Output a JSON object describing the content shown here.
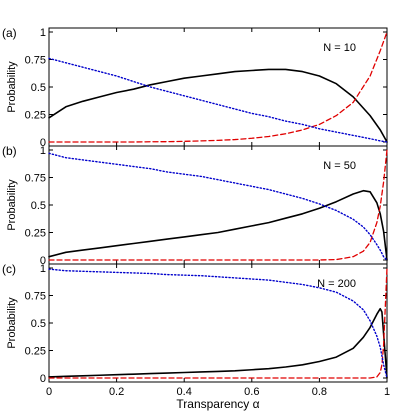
{
  "chart_data": {
    "type": "line",
    "xlabel": "Transparency α",
    "ylabel": "Probability",
    "xlim": [
      0,
      1
    ],
    "ylim": [
      0,
      1
    ],
    "x_ticks": [
      "0",
      "0.2",
      "0.4",
      "0.6",
      "0.8",
      "1"
    ],
    "y_ticks": [
      "0",
      "0.25",
      "0.5",
      "0.75",
      "1"
    ],
    "grid": false,
    "legend": "none",
    "colors": {
      "solid": "#000000",
      "dashed": "#e00000",
      "dotted": "#0000cc"
    },
    "panels": [
      {
        "label": "(a)",
        "annotation": "N = 10",
        "x": [
          0,
          0.05,
          0.1,
          0.15,
          0.2,
          0.25,
          0.3,
          0.35,
          0.4,
          0.45,
          0.5,
          0.55,
          0.6,
          0.65,
          0.7,
          0.75,
          0.8,
          0.85,
          0.9,
          0.95,
          0.98,
          1
        ],
        "series": [
          {
            "style": "solid",
            "values": [
              0.22,
              0.32,
              0.37,
              0.41,
              0.45,
              0.48,
              0.52,
              0.55,
              0.58,
              0.6,
              0.62,
              0.64,
              0.65,
              0.66,
              0.66,
              0.64,
              0.6,
              0.53,
              0.41,
              0.24,
              0.11,
              0
            ]
          },
          {
            "style": "dashed",
            "values": [
              0,
              0,
              0,
              0,
              0,
              0,
              0.002,
              0.003,
              0.006,
              0.01,
              0.015,
              0.022,
              0.034,
              0.05,
              0.075,
              0.11,
              0.16,
              0.24,
              0.36,
              0.6,
              0.83,
              1
            ]
          },
          {
            "style": "dotted",
            "values": [
              0.76,
              0.72,
              0.68,
              0.64,
              0.6,
              0.55,
              0.5,
              0.46,
              0.42,
              0.38,
              0.34,
              0.3,
              0.26,
              0.23,
              0.19,
              0.16,
              0.12,
              0.09,
              0.06,
              0.03,
              0.01,
              0
            ]
          }
        ]
      },
      {
        "label": "(b)",
        "annotation": "N = 50",
        "x": [
          0,
          0.05,
          0.1,
          0.15,
          0.2,
          0.25,
          0.3,
          0.35,
          0.4,
          0.45,
          0.5,
          0.55,
          0.6,
          0.65,
          0.7,
          0.75,
          0.8,
          0.85,
          0.9,
          0.93,
          0.95,
          0.97,
          0.98,
          0.99,
          1
        ],
        "series": [
          {
            "style": "solid",
            "values": [
              0.03,
              0.07,
              0.09,
              0.11,
              0.13,
              0.15,
              0.17,
              0.19,
              0.21,
              0.23,
              0.25,
              0.28,
              0.31,
              0.34,
              0.38,
              0.42,
              0.47,
              0.53,
              0.6,
              0.63,
              0.62,
              0.52,
              0.42,
              0.26,
              0
            ]
          },
          {
            "style": "dashed",
            "values": [
              0,
              0,
              0,
              0,
              0,
              0,
              0,
              0,
              0,
              0,
              0,
              0,
              0,
              0,
              0,
              0,
              0,
              0.004,
              0.03,
              0.08,
              0.16,
              0.34,
              0.49,
              0.71,
              1
            ]
          },
          {
            "style": "dotted",
            "values": [
              0.97,
              0.93,
              0.91,
              0.89,
              0.87,
              0.85,
              0.83,
              0.8,
              0.78,
              0.76,
              0.73,
              0.7,
              0.67,
              0.64,
              0.6,
              0.56,
              0.51,
              0.45,
              0.37,
              0.3,
              0.23,
              0.14,
              0.09,
              0.03,
              0
            ]
          }
        ]
      },
      {
        "label": "(c)",
        "annotation": "N = 200",
        "x": [
          0,
          0.05,
          0.1,
          0.15,
          0.2,
          0.25,
          0.3,
          0.35,
          0.4,
          0.45,
          0.5,
          0.55,
          0.6,
          0.65,
          0.7,
          0.75,
          0.8,
          0.85,
          0.9,
          0.93,
          0.95,
          0.97,
          0.98,
          0.985,
          0.99,
          1
        ],
        "series": [
          {
            "style": "solid",
            "values": [
              0.01,
              0.015,
              0.02,
              0.025,
              0.03,
              0.035,
              0.04,
              0.045,
              0.05,
              0.055,
              0.06,
              0.065,
              0.075,
              0.085,
              0.1,
              0.12,
              0.15,
              0.19,
              0.27,
              0.37,
              0.46,
              0.58,
              0.63,
              0.6,
              0.4,
              0
            ]
          },
          {
            "style": "dashed",
            "values": [
              0,
              0,
              0,
              0,
              0,
              0,
              0,
              0,
              0,
              0,
              0,
              0,
              0,
              0,
              0,
              0,
              0,
              0,
              0,
              0,
              0,
              0.01,
              0.05,
              0.12,
              0.3,
              1
            ]
          },
          {
            "style": "dotted",
            "values": [
              0.99,
              0.975,
              0.97,
              0.965,
              0.96,
              0.955,
              0.95,
              0.94,
              0.935,
              0.93,
              0.92,
              0.91,
              0.9,
              0.89,
              0.87,
              0.85,
              0.82,
              0.78,
              0.7,
              0.62,
              0.52,
              0.38,
              0.28,
              0.2,
              0.12,
              0
            ]
          }
        ]
      }
    ]
  }
}
